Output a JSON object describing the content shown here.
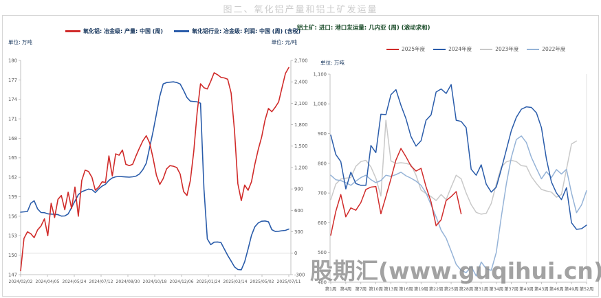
{
  "page": {
    "title": "图二、氧化铝产量和铝土矿发运量",
    "watermark": "股期汇(www.guqihui.cn)"
  },
  "chart_data": [
    {
      "type": "line",
      "unit_left": "单位: 万吨",
      "unit_right": "单位: 元/吨",
      "x_labels": [
        "2024/02/02",
        "2024/04/05",
        "2024/05/24",
        "2024/07/12",
        "2024/08/30",
        "2024/10/18",
        "2024/12/06",
        "2025/01/24",
        "2025/03/14",
        "2025/05/02",
        "2025/07/11"
      ],
      "y_left": {
        "min": 147,
        "max": 180,
        "step": 3,
        "ticks": [
          "147",
          "150",
          "153",
          "156",
          "159",
          "162",
          "165",
          "168",
          "171",
          "174",
          "177",
          "180"
        ]
      },
      "y_right": {
        "min": -300,
        "max": 2700,
        "step": 300,
        "ticks": [
          "-300",
          "0",
          "300",
          "600",
          "900",
          "1,200",
          "1,500",
          "1,800",
          "2,100",
          "2,400",
          "2,700"
        ]
      },
      "grid_zero_line_right_axis": 0,
      "series": [
        {
          "name": "氧化铝: 冶金级: 产量: 中国 (周)",
          "color": "#d02b2a",
          "axis": "left",
          "width": 1.6,
          "values": [
            147.6,
            152.6,
            153.6,
            153.3,
            152.7,
            153.9,
            154.5,
            155.6,
            153.0,
            158.0,
            155.8,
            158.6,
            159.2,
            157.0,
            159.7,
            157.2,
            160.5,
            156.0,
            161.5,
            163.1,
            162.9,
            162.0,
            160.0,
            160.5,
            161.3,
            161.2,
            165.3,
            162.2,
            165.6,
            165.4,
            166.2,
            164.0,
            163.8,
            164.0,
            165.3,
            166.5,
            167.6,
            168.4,
            167.3,
            165.0,
            162.3,
            160.9,
            161.8,
            163.3,
            163.8,
            163.7,
            163.5,
            162.5,
            159.8,
            159.2,
            161.5,
            166.0,
            172.0,
            176.4,
            175.8,
            175.6,
            176.8,
            178.1,
            177.8,
            177.4,
            177.3,
            177.1,
            175.0,
            169.2,
            161.0,
            158.4,
            160.8,
            160.0,
            161.3,
            164.0,
            166.3,
            168.2,
            170.8,
            172.6,
            172.1,
            172.8,
            173.6,
            175.8,
            178.0,
            178.9
          ]
        },
        {
          "name": "氧化铝行业: 冶金级: 利润: 中国 (周) (含税)",
          "color": "#2a5caa",
          "axis": "right",
          "width": 1.6,
          "values": [
            575,
            580,
            585,
            700,
            735,
            620,
            570,
            568,
            552,
            548,
            545,
            540,
            520,
            522,
            550,
            640,
            730,
            820,
            862,
            880,
            898,
            890,
            850,
            900,
            940,
            965,
            1020,
            1055,
            1070,
            1075,
            1072,
            1068,
            1065,
            1070,
            1080,
            1110,
            1170,
            1260,
            1480,
            1700,
            1950,
            2200,
            2370,
            2390,
            2395,
            2400,
            2390,
            2370,
            2280,
            2180,
            2130,
            2125,
            2120,
            2100,
            900,
            200,
            120,
            155,
            158,
            150,
            60,
            -30,
            -110,
            -190,
            -228,
            -232,
            -120,
            60,
            250,
            370,
            425,
            448,
            452,
            440,
            330,
            305,
            308,
            315,
            320,
            338
          ]
        }
      ]
    },
    {
      "type": "line",
      "title": "铝土矿: 进口: 港口发运量: 几内亚 (周) (滚动求和)",
      "unit_left": "单位: 万吨",
      "weeks": 52,
      "x_labels": [
        "第1周",
        "第4周",
        "第7周",
        "第10周",
        "第13周",
        "第16周",
        "第19周",
        "第22周",
        "第25周",
        "第28周",
        "第31周",
        "第34周",
        "第37周",
        "第40周",
        "第43周",
        "第46周",
        "第49周",
        "第52周"
      ],
      "x_label_weeks": [
        1,
        4,
        7,
        10,
        13,
        16,
        19,
        22,
        25,
        28,
        31,
        34,
        37,
        40,
        43,
        46,
        49,
        52
      ],
      "y": {
        "min": 400,
        "max": 1100,
        "step": 100,
        "ticks": [
          "400",
          "500",
          "600",
          "700",
          "800",
          "900",
          "1,000",
          "1,100"
        ]
      },
      "series": [
        {
          "name": "2025年度",
          "color": "#d02b2a",
          "width": 1.5,
          "start_week": 1,
          "values": [
            558,
            638,
            695,
            620,
            650,
            642,
            668,
            712,
            720,
            722,
            630,
            688,
            748,
            811,
            850,
            822,
            791,
            774,
            783,
            721,
            670,
            590,
            610,
            675,
            688,
            705,
            630
          ]
        },
        {
          "name": "2024年度",
          "color": "#2a5caa",
          "width": 1.5,
          "start_week": 1,
          "values": [
            895,
            830,
            806,
            714,
            770,
            732,
            726,
            726,
            860,
            836,
            965,
            964,
            1031,
            1048,
            995,
            950,
            890,
            858,
            876,
            945,
            963,
            1040,
            1050,
            1035,
            1065,
            945,
            941,
            920,
            780,
            760,
            795,
            730,
            703,
            720,
            780,
            845,
            910,
            955,
            982,
            990,
            988,
            970,
            920,
            815,
            737,
            700,
            678,
            718,
            600,
            578,
            580,
            592
          ]
        },
        {
          "name": "2023年度",
          "color": "#c9c9c9",
          "width": 1.5,
          "start_week": 1,
          "values": [
            678,
            730,
            747,
            750,
            752,
            790,
            806,
            810,
            788,
            750,
            690,
            945,
            808,
            800,
            802,
            800,
            795,
            760,
            710,
            698,
            688,
            675,
            695,
            678,
            720,
            760,
            748,
            700,
            661,
            635,
            629,
            632,
            665,
            730,
            788,
            805,
            810,
            806,
            792,
            790,
            755,
            732,
            712,
            707,
            703,
            686,
            695,
            780,
            865,
            875
          ]
        },
        {
          "name": "2022年度",
          "color": "#95b3d7",
          "width": 1.5,
          "start_week": 1,
          "values": [
            760,
            745,
            742,
            735,
            726,
            740,
            752,
            760,
            745,
            735,
            742,
            760,
            756,
            762,
            770,
            758,
            750,
            740,
            726,
            700,
            660,
            620,
            575,
            548,
            505,
            460,
            440,
            432,
            453,
            421,
            468,
            445,
            440,
            500,
            620,
            730,
            820,
            880,
            892,
            870,
            820,
            783,
            748,
            772,
            752,
            779,
            764,
            780,
            700,
            634,
            660,
            708
          ]
        }
      ]
    }
  ]
}
